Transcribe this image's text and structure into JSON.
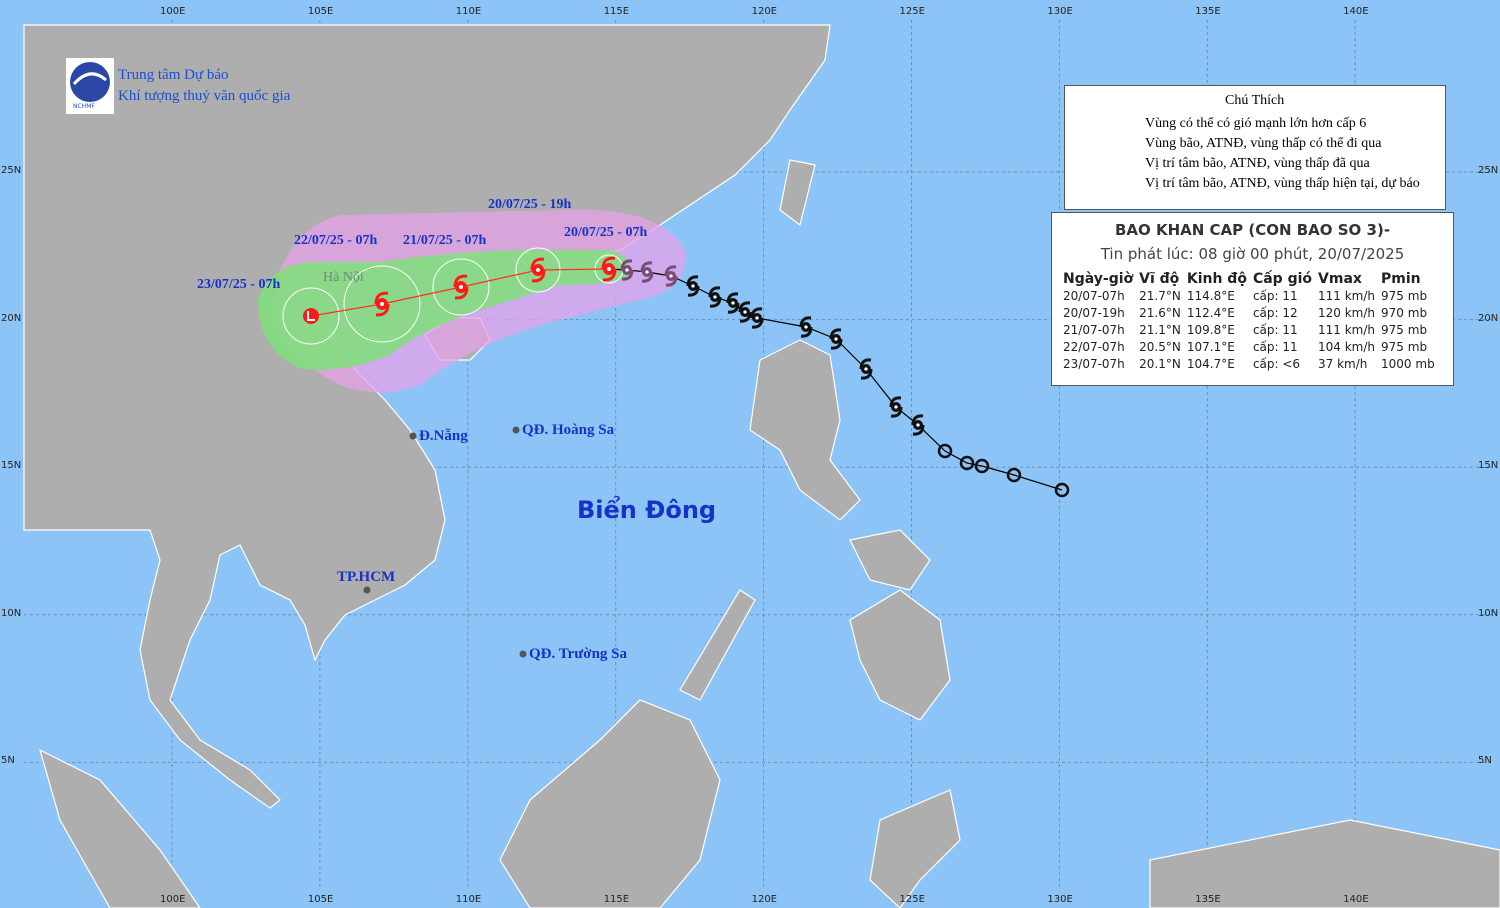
{
  "header": {
    "org_line1": "Trung tâm Dự báo",
    "org_line2": "Khí tượng thuỷ văn quốc gia",
    "logo_text": "NCHMF"
  },
  "axes": {
    "longitudes": [
      "100E",
      "105E",
      "110E",
      "115E",
      "120E",
      "125E",
      "130E",
      "135E",
      "140E"
    ],
    "latitudes": [
      "25N",
      "20N",
      "15N",
      "10N",
      "5N"
    ]
  },
  "legend": {
    "title": "Chú Thích",
    "items": [
      "Vùng có thể có gió mạnh lớn hơn cấp 6",
      "Vùng bão, ATNĐ, vùng thấp có thể đi qua",
      "Vị trí tâm bão, ATNĐ, vùng thấp đã qua",
      "Vị trí tâm bão, ATNĐ, vùng thấp hiện tại, dự báo"
    ]
  },
  "bulletin": {
    "title": "BAO KHAN CAP (CON BAO SO 3)-",
    "issued": "Tin phát lúc: 08 giờ 00 phút, 20/07/2025",
    "columns": [
      "Ngày-giờ",
      "Vĩ độ",
      "Kinh độ",
      "Cấp gió",
      "Vmax",
      "Pmin"
    ],
    "rows": [
      [
        "20/07-07h",
        "21.7°N",
        "114.8°E",
        "cấp: 11",
        "111 km/h",
        "975 mb"
      ],
      [
        "20/07-19h",
        "21.6°N",
        "112.4°E",
        "cấp: 12",
        "120 km/h",
        "970 mb"
      ],
      [
        "21/07-07h",
        "21.1°N",
        "109.8°E",
        "cấp: 11",
        "111 km/h",
        "975 mb"
      ],
      [
        "22/07-07h",
        "20.5°N",
        "107.1°E",
        "cấp: 11",
        "104 km/h",
        "975 mb"
      ],
      [
        "23/07-07h",
        "20.1°N",
        "104.7°E",
        "cấp: <6",
        "37 km/h",
        "1000 mb"
      ]
    ]
  },
  "track_labels": [
    "20/07/25 - 19h",
    "22/07/25 - 07h",
    "21/07/25 - 07h",
    "20/07/25 - 07h",
    "23/07/25 - 07h"
  ],
  "places": [
    "Hà Nội",
    "Đ.Nẵng",
    "QĐ. Hoàng Sa",
    "Biển Đông",
    "TP.HCM",
    "QĐ. Trường Sa"
  ]
}
